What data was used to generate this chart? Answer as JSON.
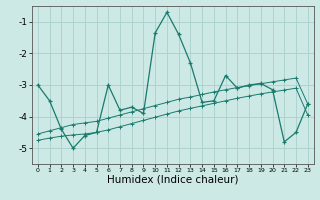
{
  "xlabel": "Humidex (Indice chaleur)",
  "bg_color": "#cce9e5",
  "grid_color": "#aad0cc",
  "line_color": "#1a7a6e",
  "x": [
    0,
    1,
    2,
    3,
    4,
    5,
    6,
    7,
    8,
    9,
    10,
    11,
    12,
    13,
    14,
    15,
    16,
    17,
    18,
    19,
    20,
    21,
    22,
    23
  ],
  "y_main": [
    -3.0,
    -3.5,
    -4.4,
    -5.0,
    -4.6,
    -4.5,
    -3.0,
    -3.8,
    -3.7,
    -3.9,
    -1.35,
    -0.7,
    -1.4,
    -2.3,
    -3.55,
    -3.5,
    -2.7,
    -3.1,
    -3.0,
    -2.95,
    -3.15,
    -4.8,
    -4.5,
    -3.6
  ],
  "y_upper": [
    -4.55,
    -4.45,
    -4.35,
    -4.25,
    -4.2,
    -4.15,
    -4.05,
    -3.95,
    -3.85,
    -3.75,
    -3.65,
    -3.55,
    -3.45,
    -3.38,
    -3.3,
    -3.22,
    -3.15,
    -3.08,
    -3.02,
    -2.96,
    -2.9,
    -2.84,
    -2.78,
    -3.6
  ],
  "y_lower": [
    -4.75,
    -4.68,
    -4.62,
    -4.58,
    -4.55,
    -4.5,
    -4.42,
    -4.32,
    -4.22,
    -4.12,
    -4.02,
    -3.92,
    -3.82,
    -3.74,
    -3.66,
    -3.58,
    -3.5,
    -3.42,
    -3.35,
    -3.28,
    -3.22,
    -3.16,
    -3.1,
    -3.95
  ],
  "ylim": [
    -5.5,
    -0.5
  ],
  "xlim": [
    -0.5,
    23.5
  ],
  "yticks": [
    -5,
    -4,
    -3,
    -2,
    -1
  ],
  "xticks": [
    0,
    1,
    2,
    3,
    4,
    5,
    6,
    7,
    8,
    9,
    10,
    11,
    12,
    13,
    14,
    15,
    16,
    17,
    18,
    19,
    20,
    21,
    22,
    23
  ]
}
